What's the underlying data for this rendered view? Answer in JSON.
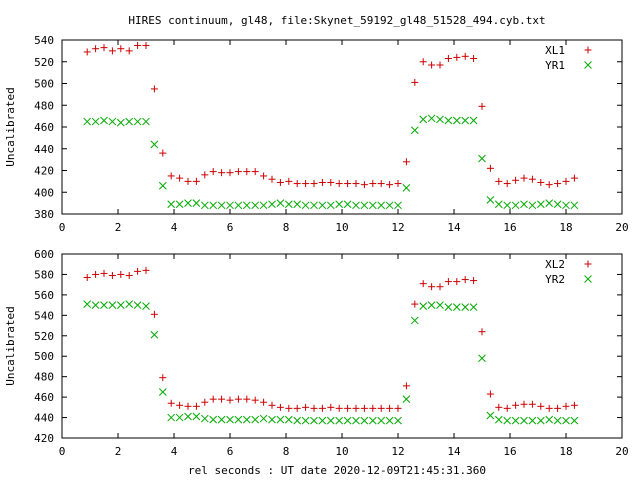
{
  "chart_data": [
    {
      "type": "scatter",
      "title": "HIRES continuum, gl48, file:Skynet_59192_gl48_51528_494.cyb.txt",
      "xlabel": "",
      "ylabel": "Uncalibrated",
      "xlim": [
        0,
        20
      ],
      "ylim": [
        380,
        540
      ],
      "xticks": [
        "0",
        "2",
        "4",
        "6",
        "8",
        "10",
        "12",
        "14",
        "16",
        "18",
        "20"
      ],
      "yticks": [
        "380",
        "400",
        "420",
        "440",
        "460",
        "480",
        "500",
        "520",
        "540"
      ],
      "grid": false,
      "legend_position": "top-right",
      "series": [
        {
          "name": "XL1",
          "marker": "plus",
          "color": "#cc0000",
          "points": [
            [
              0.9,
              529
            ],
            [
              1.2,
              532
            ],
            [
              1.5,
              533
            ],
            [
              1.8,
              530
            ],
            [
              2.1,
              532
            ],
            [
              2.4,
              530
            ],
            [
              2.7,
              535
            ],
            [
              3.0,
              535
            ],
            [
              3.3,
              495
            ],
            [
              3.6,
              436
            ],
            [
              3.9,
              415
            ],
            [
              4.2,
              413
            ],
            [
              4.5,
              410
            ],
            [
              4.8,
              410
            ],
            [
              5.1,
              416
            ],
            [
              5.4,
              419
            ],
            [
              5.7,
              418
            ],
            [
              6.0,
              418
            ],
            [
              6.3,
              419
            ],
            [
              6.6,
              419
            ],
            [
              6.9,
              419
            ],
            [
              7.2,
              415
            ],
            [
              7.5,
              412
            ],
            [
              7.8,
              409
            ],
            [
              8.1,
              410
            ],
            [
              8.4,
              408
            ],
            [
              8.7,
              408
            ],
            [
              9.0,
              408
            ],
            [
              9.3,
              409
            ],
            [
              9.6,
              409
            ],
            [
              9.9,
              408
            ],
            [
              10.2,
              408
            ],
            [
              10.5,
              408
            ],
            [
              10.8,
              407
            ],
            [
              11.1,
              408
            ],
            [
              11.4,
              408
            ],
            [
              11.7,
              407
            ],
            [
              12.0,
              408
            ],
            [
              12.3,
              428
            ],
            [
              12.6,
              501
            ],
            [
              12.9,
              520
            ],
            [
              13.2,
              517
            ],
            [
              13.5,
              517
            ],
            [
              13.8,
              523
            ],
            [
              14.1,
              524
            ],
            [
              14.4,
              525
            ],
            [
              14.7,
              523
            ],
            [
              15.0,
              479
            ],
            [
              15.3,
              422
            ],
            [
              15.6,
              410
            ],
            [
              15.9,
              408
            ],
            [
              16.2,
              411
            ],
            [
              16.5,
              413
            ],
            [
              16.8,
              412
            ],
            [
              17.1,
              409
            ],
            [
              17.4,
              407
            ],
            [
              17.7,
              408
            ],
            [
              18.0,
              410
            ],
            [
              18.3,
              413
            ]
          ]
        },
        {
          "name": "YR1",
          "marker": "cross",
          "color": "#00aa00",
          "points": [
            [
              0.9,
              465
            ],
            [
              1.2,
              465
            ],
            [
              1.5,
              466
            ],
            [
              1.8,
              465
            ],
            [
              2.1,
              464
            ],
            [
              2.4,
              465
            ],
            [
              2.7,
              465
            ],
            [
              3.0,
              465
            ],
            [
              3.3,
              444
            ],
            [
              3.6,
              406
            ],
            [
              3.9,
              389
            ],
            [
              4.2,
              389
            ],
            [
              4.5,
              390
            ],
            [
              4.8,
              390
            ],
            [
              5.1,
              388
            ],
            [
              5.4,
              388
            ],
            [
              5.7,
              388
            ],
            [
              6.0,
              388
            ],
            [
              6.3,
              388
            ],
            [
              6.6,
              388
            ],
            [
              6.9,
              388
            ],
            [
              7.2,
              388
            ],
            [
              7.5,
              389
            ],
            [
              7.8,
              390
            ],
            [
              8.1,
              389
            ],
            [
              8.4,
              389
            ],
            [
              8.7,
              388
            ],
            [
              9.0,
              388
            ],
            [
              9.3,
              388
            ],
            [
              9.6,
              388
            ],
            [
              9.9,
              389
            ],
            [
              10.2,
              389
            ],
            [
              10.5,
              388
            ],
            [
              10.8,
              388
            ],
            [
              11.1,
              388
            ],
            [
              11.4,
              388
            ],
            [
              11.7,
              388
            ],
            [
              12.0,
              388
            ],
            [
              12.3,
              404
            ],
            [
              12.6,
              457
            ],
            [
              12.9,
              467
            ],
            [
              13.2,
              468
            ],
            [
              13.5,
              467
            ],
            [
              13.8,
              466
            ],
            [
              14.1,
              466
            ],
            [
              14.4,
              466
            ],
            [
              14.7,
              466
            ],
            [
              15.0,
              431
            ],
            [
              15.3,
              393
            ],
            [
              15.6,
              389
            ],
            [
              15.9,
              388
            ],
            [
              16.2,
              388
            ],
            [
              16.5,
              389
            ],
            [
              16.8,
              388
            ],
            [
              17.1,
              389
            ],
            [
              17.4,
              390
            ],
            [
              17.7,
              389
            ],
            [
              18.0,
              388
            ],
            [
              18.3,
              388
            ]
          ]
        }
      ]
    },
    {
      "type": "scatter",
      "title": "",
      "xlabel": "rel seconds : UT date 2020-12-09T21:45:31.360",
      "ylabel": "Uncalibrated",
      "xlim": [
        0,
        20
      ],
      "ylim": [
        420,
        600
      ],
      "xticks": [
        "0",
        "2",
        "4",
        "6",
        "8",
        "10",
        "12",
        "14",
        "16",
        "18",
        "20"
      ],
      "yticks": [
        "420",
        "440",
        "460",
        "480",
        "500",
        "520",
        "540",
        "560",
        "580",
        "600"
      ],
      "grid": false,
      "legend_position": "top-right",
      "series": [
        {
          "name": "XL2",
          "marker": "plus",
          "color": "#cc0000",
          "points": [
            [
              0.9,
              577
            ],
            [
              1.2,
              580
            ],
            [
              1.5,
              581
            ],
            [
              1.8,
              579
            ],
            [
              2.1,
              580
            ],
            [
              2.4,
              579
            ],
            [
              2.7,
              583
            ],
            [
              3.0,
              584
            ],
            [
              3.3,
              541
            ],
            [
              3.6,
              479
            ],
            [
              3.9,
              454
            ],
            [
              4.2,
              452
            ],
            [
              4.5,
              451
            ],
            [
              4.8,
              451
            ],
            [
              5.1,
              455
            ],
            [
              5.4,
              458
            ],
            [
              5.7,
              458
            ],
            [
              6.0,
              457
            ],
            [
              6.3,
              458
            ],
            [
              6.6,
              458
            ],
            [
              6.9,
              457
            ],
            [
              7.2,
              455
            ],
            [
              7.5,
              452
            ],
            [
              7.8,
              450
            ],
            [
              8.1,
              449
            ],
            [
              8.4,
              449
            ],
            [
              8.7,
              450
            ],
            [
              9.0,
              449
            ],
            [
              9.3,
              449
            ],
            [
              9.6,
              450
            ],
            [
              9.9,
              449
            ],
            [
              10.2,
              449
            ],
            [
              10.5,
              449
            ],
            [
              10.8,
              449
            ],
            [
              11.1,
              449
            ],
            [
              11.4,
              449
            ],
            [
              11.7,
              449
            ],
            [
              12.0,
              449
            ],
            [
              12.3,
              471
            ],
            [
              12.6,
              551
            ],
            [
              12.9,
              571
            ],
            [
              13.2,
              568
            ],
            [
              13.5,
              568
            ],
            [
              13.8,
              573
            ],
            [
              14.1,
              573
            ],
            [
              14.4,
              575
            ],
            [
              14.7,
              574
            ],
            [
              15.0,
              524
            ],
            [
              15.3,
              463
            ],
            [
              15.6,
              450
            ],
            [
              15.9,
              449
            ],
            [
              16.2,
              452
            ],
            [
              16.5,
              453
            ],
            [
              16.8,
              453
            ],
            [
              17.1,
              451
            ],
            [
              17.4,
              449
            ],
            [
              17.7,
              449
            ],
            [
              18.0,
              451
            ],
            [
              18.3,
              452
            ]
          ]
        },
        {
          "name": "YR2",
          "marker": "cross",
          "color": "#00aa00",
          "points": [
            [
              0.9,
              551
            ],
            [
              1.2,
              550
            ],
            [
              1.5,
              550
            ],
            [
              1.8,
              550
            ],
            [
              2.1,
              550
            ],
            [
              2.4,
              551
            ],
            [
              2.7,
              550
            ],
            [
              3.0,
              549
            ],
            [
              3.3,
              521
            ],
            [
              3.6,
              465
            ],
            [
              3.9,
              440
            ],
            [
              4.2,
              440
            ],
            [
              4.5,
              441
            ],
            [
              4.8,
              441
            ],
            [
              5.1,
              439
            ],
            [
              5.4,
              438
            ],
            [
              5.7,
              438
            ],
            [
              6.0,
              438
            ],
            [
              6.3,
              438
            ],
            [
              6.6,
              438
            ],
            [
              6.9,
              438
            ],
            [
              7.2,
              439
            ],
            [
              7.5,
              438
            ],
            [
              7.8,
              438
            ],
            [
              8.1,
              438
            ],
            [
              8.4,
              437
            ],
            [
              8.7,
              437
            ],
            [
              9.0,
              437
            ],
            [
              9.3,
              437
            ],
            [
              9.6,
              437
            ],
            [
              9.9,
              437
            ],
            [
              10.2,
              437
            ],
            [
              10.5,
              437
            ],
            [
              10.8,
              437
            ],
            [
              11.1,
              437
            ],
            [
              11.4,
              437
            ],
            [
              11.7,
              437
            ],
            [
              12.0,
              437
            ],
            [
              12.3,
              458
            ],
            [
              12.6,
              535
            ],
            [
              12.9,
              549
            ],
            [
              13.2,
              550
            ],
            [
              13.5,
              550
            ],
            [
              13.8,
              548
            ],
            [
              14.1,
              548
            ],
            [
              14.4,
              548
            ],
            [
              14.7,
              548
            ],
            [
              15.0,
              498
            ],
            [
              15.3,
              442
            ],
            [
              15.6,
              438
            ],
            [
              15.9,
              437
            ],
            [
              16.2,
              437
            ],
            [
              16.5,
              437
            ],
            [
              16.8,
              437
            ],
            [
              17.1,
              437
            ],
            [
              17.4,
              438
            ],
            [
              17.7,
              437
            ],
            [
              18.0,
              437
            ],
            [
              18.3,
              437
            ]
          ]
        }
      ]
    }
  ]
}
